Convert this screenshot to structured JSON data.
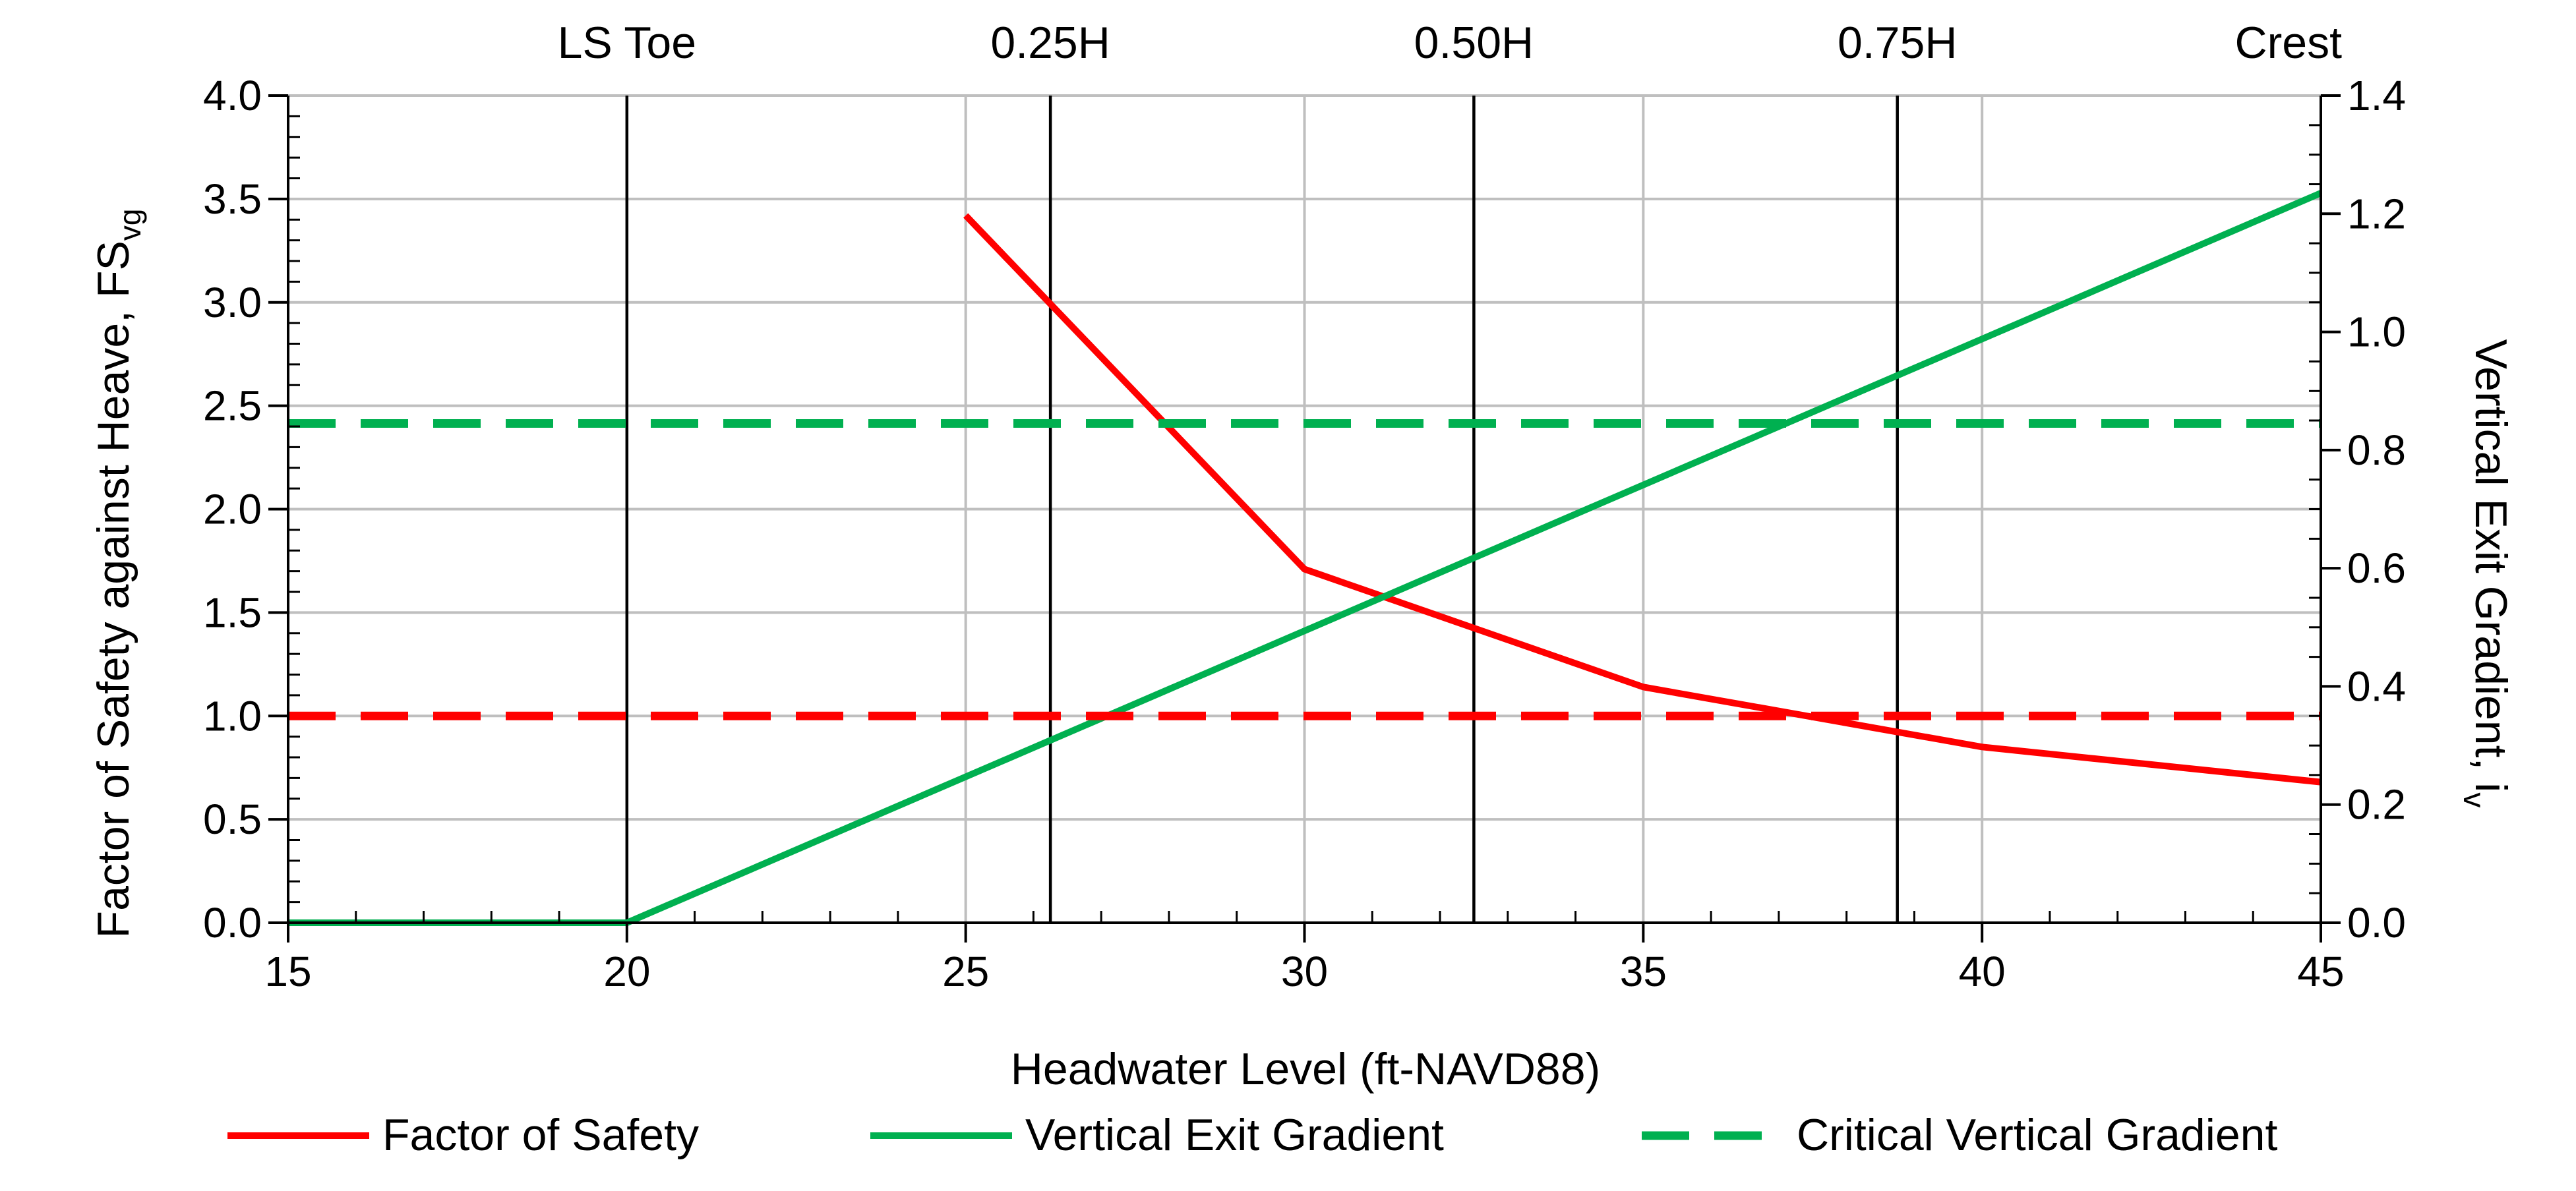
{
  "chart_data": {
    "type": "line",
    "xlabel": "Headwater Level (ft-NAVD88)",
    "ylabel_left": "Factor of Safety against Heave, FS",
    "ylabel_left_sub": "vg",
    "ylabel_right": "Vertical Exit Gradient, i",
    "ylabel_right_sub": "v",
    "xlim": [
      15,
      45
    ],
    "ylim_left": [
      0,
      4.0
    ],
    "ylim_right": [
      0,
      1.4
    ],
    "x_ticks": [
      15,
      20,
      25,
      30,
      35,
      40,
      45
    ],
    "x_tick_labels": [
      "15",
      "20",
      "25",
      "30",
      "35",
      "40",
      "45"
    ],
    "y_left_ticks": [
      0,
      0.5,
      1.0,
      1.5,
      2.0,
      2.5,
      3.0,
      3.5,
      4.0
    ],
    "y_left_tick_labels": [
      "0.0",
      "0.5",
      "1.0",
      "1.5",
      "2.0",
      "2.5",
      "3.0",
      "3.5",
      "4.0"
    ],
    "y_right_ticks": [
      0,
      0.2,
      0.4,
      0.6,
      0.8,
      1.0,
      1.2,
      1.4
    ],
    "y_right_tick_labels": [
      "0.0",
      "0.2",
      "0.4",
      "0.6",
      "0.8",
      "1.0",
      "1.2",
      "1.4"
    ],
    "grid": true,
    "reference_lines": [
      {
        "x": 20,
        "label": "LS Toe"
      },
      {
        "x": 26.25,
        "label": "0.25H"
      },
      {
        "x": 32.5,
        "label": "0.50H"
      },
      {
        "x": 38.75,
        "label": "0.75H"
      },
      {
        "x": 45,
        "label": "Crest"
      }
    ],
    "series": [
      {
        "name": "Factor of Safety",
        "axis": "left",
        "color": "#ff0000",
        "style": "solid",
        "x": [
          25,
          30,
          35,
          40,
          45
        ],
        "y": [
          3.42,
          1.71,
          1.14,
          0.85,
          0.68
        ]
      },
      {
        "name": "Vertical Exit Gradient",
        "axis": "right",
        "color": "#00b050",
        "style": "solid",
        "x": [
          15,
          20,
          45
        ],
        "y": [
          0,
          0,
          1.235
        ]
      },
      {
        "name": "Critical Vertical Gradient",
        "axis": "right",
        "color": "#00b050",
        "style": "dashed",
        "x": [
          15,
          45
        ],
        "y": [
          0.845,
          0.845
        ]
      },
      {
        "name": "FS = 1.0",
        "axis": "left",
        "color": "#ff0000",
        "style": "dashed",
        "in_legend": false,
        "x": [
          15,
          45
        ],
        "y": [
          1.0,
          1.0
        ]
      }
    ],
    "legend": {
      "placement": "bottom",
      "entries": [
        "Factor of Safety",
        "Vertical Exit Gradient",
        "Critical Vertical Gradient"
      ]
    }
  }
}
